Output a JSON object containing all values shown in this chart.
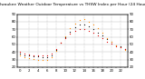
{
  "title": "Milwaukee Weather Outdoor Temperature vs THSW Index per Hour (24 Hours)",
  "title_fontsize": 3.2,
  "hours": [
    0,
    1,
    2,
    3,
    4,
    5,
    6,
    7,
    8,
    9,
    10,
    11,
    12,
    13,
    14,
    15,
    16,
    17,
    18,
    19,
    20,
    21,
    22,
    23
  ],
  "temp": [
    40,
    38,
    37,
    36,
    36,
    35,
    35,
    38,
    44,
    52,
    58,
    64,
    68,
    70,
    70,
    68,
    65,
    62,
    58,
    54,
    51,
    48,
    46,
    44
  ],
  "thsw": [
    35,
    33,
    32,
    31,
    30,
    30,
    29,
    33,
    42,
    52,
    61,
    71,
    78,
    82,
    83,
    80,
    76,
    71,
    65,
    58,
    53,
    49,
    46,
    43
  ],
  "black": [
    38,
    36,
    35,
    34,
    34,
    33,
    33,
    36,
    43,
    52,
    59,
    67,
    73,
    76,
    76,
    74,
    70,
    66,
    62,
    57,
    53,
    49,
    47,
    44
  ],
  "temp_color": "#dd0000",
  "thsw_color": "#ff8800",
  "black_color": "#111111",
  "bg_color": "#ffffff",
  "grid_color": "#999999",
  "ylim_min": 20,
  "ylim_max": 90,
  "yticks_left": [
    20,
    30,
    40,
    50,
    60,
    70,
    80,
    90
  ],
  "yticks_right": [
    20,
    30,
    40,
    50,
    60,
    70,
    80,
    90
  ],
  "xtick_show": {
    "0": "0",
    "2": "2",
    "4": "4",
    "6": "6",
    "8": "8",
    "10": "10",
    "12": "12",
    "14": "14",
    "16": "16",
    "18": "18",
    "20": "20",
    "22": "22"
  },
  "vgrid_x": [
    2,
    4,
    6,
    8,
    10,
    12,
    14,
    16,
    18,
    20,
    22
  ],
  "background": "#ffffff"
}
